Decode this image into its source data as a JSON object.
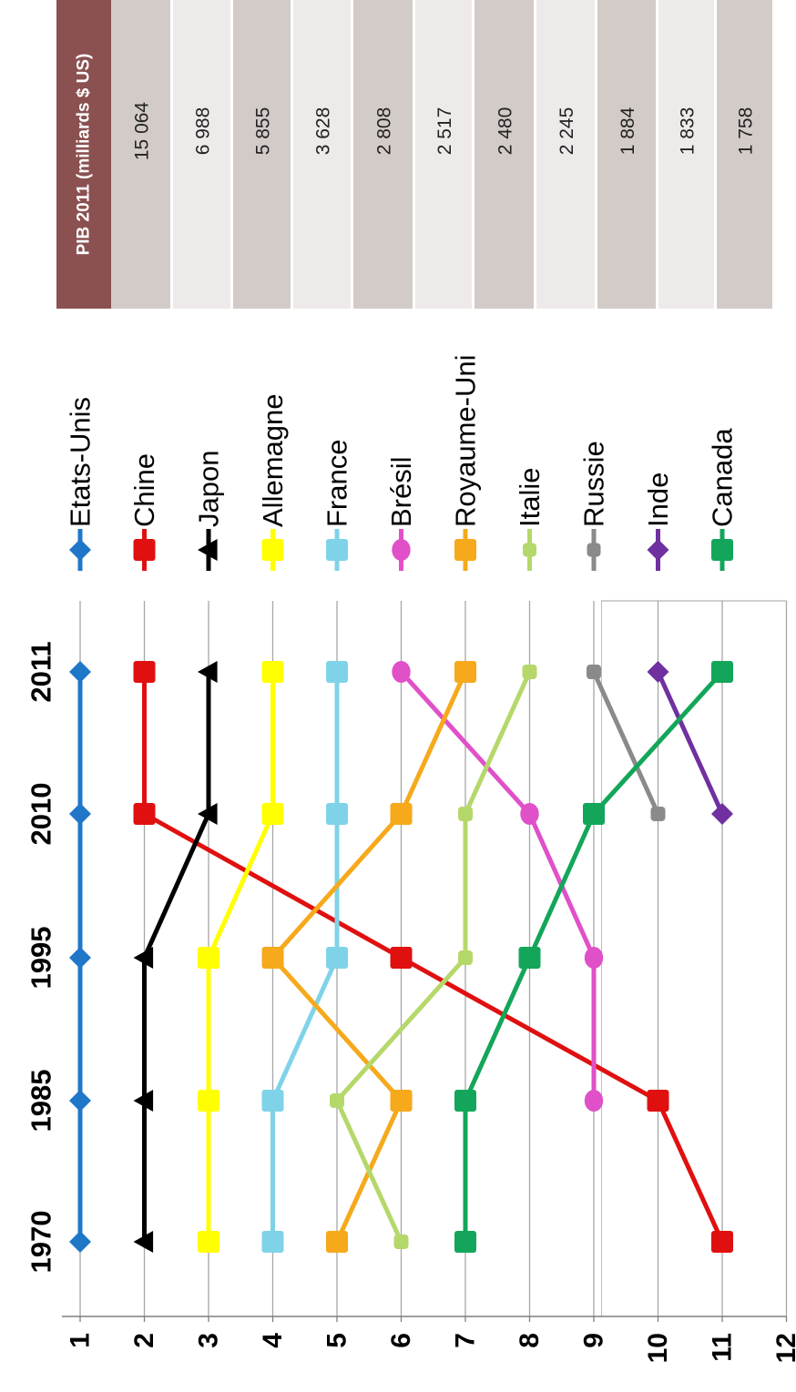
{
  "chart_data": {
    "type": "line",
    "x": [
      "1970",
      "1985",
      "1995",
      "2010",
      "2011"
    ],
    "ylim": [
      1,
      12
    ],
    "yticks": [
      "1",
      "2",
      "3",
      "4",
      "5",
      "6",
      "7",
      "8",
      "9",
      "10",
      "11",
      "12"
    ],
    "y_inverted": true,
    "grid": true,
    "legend_position": "right",
    "series": [
      {
        "name": "Etats-Unis",
        "color": "#1F77C8",
        "marker": "diamond",
        "values": [
          1,
          1,
          1,
          1,
          1
        ]
      },
      {
        "name": "Chine",
        "color": "#E01010",
        "marker": "square",
        "values": [
          11,
          10,
          6,
          2,
          2
        ]
      },
      {
        "name": "Japon",
        "color": "#000000",
        "marker": "triangle",
        "values": [
          2,
          2,
          2,
          3,
          3
        ]
      },
      {
        "name": "Allemagne",
        "color": "#FFFF00",
        "marker": "square",
        "values": [
          3,
          3,
          3,
          4,
          4
        ]
      },
      {
        "name": "France",
        "color": "#7FD3E8",
        "marker": "square",
        "values": [
          4,
          4,
          5,
          5,
          5
        ]
      },
      {
        "name": "Brésil",
        "color": "#E050C8",
        "marker": "circle",
        "values": [
          null,
          9,
          9,
          8,
          6
        ]
      },
      {
        "name": "Royaume-Uni",
        "color": "#F5A91B",
        "marker": "square",
        "values": [
          5,
          6,
          4,
          6,
          7
        ]
      },
      {
        "name": "Italie",
        "color": "#B5D86A",
        "marker": "dash",
        "values": [
          6,
          5,
          7,
          7,
          8
        ]
      },
      {
        "name": "Russie",
        "color": "#8A8A8A",
        "marker": "dash",
        "values": [
          null,
          null,
          null,
          10,
          9
        ]
      },
      {
        "name": "Inde",
        "color": "#7030A0",
        "marker": "diamond",
        "values": [
          null,
          null,
          null,
          11,
          10
        ]
      },
      {
        "name": "Canada",
        "color": "#13A65A",
        "marker": "square",
        "values": [
          7,
          7,
          8,
          9,
          11
        ]
      }
    ],
    "table": {
      "header": "PIB 2011 (milliards $ US)",
      "values": [
        "15 064",
        "6 988",
        "5 855",
        "3 628",
        "2 808",
        "2 517",
        "2 480",
        "2 245",
        "1 884",
        "1 833",
        "1 758"
      ]
    }
  }
}
